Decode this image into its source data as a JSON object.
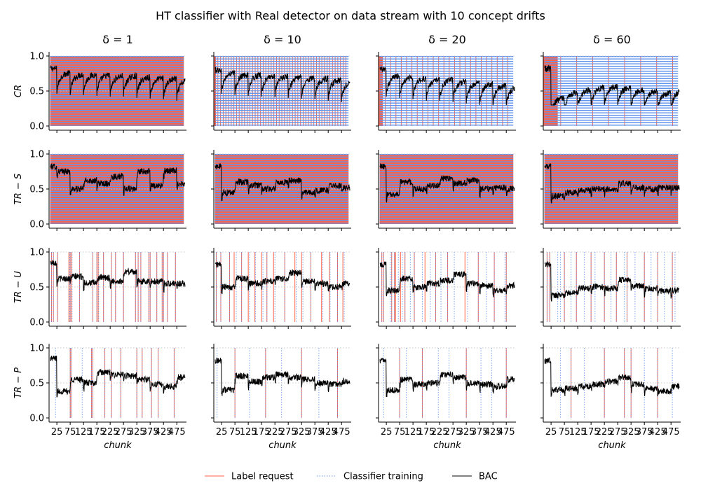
{
  "figure": {
    "title": "HT classifier with Real detector on data stream with 10 concept drifts"
  },
  "chart_data": {
    "type": "line",
    "n_chunks": 500,
    "x_range": [
      1,
      500
    ],
    "ylim": [
      0,
      1
    ],
    "yticks": [
      "0.0",
      "0.5",
      "1.0"
    ],
    "xticks": [
      25,
      75,
      125,
      175,
      225,
      275,
      325,
      375,
      425,
      475
    ],
    "xtick_labels": [
      "25",
      "75",
      "125",
      "175",
      "225",
      "275",
      "325",
      "375",
      "425",
      "475"
    ],
    "xlabel": "chunk",
    "grid_y": [
      0.5,
      1.0
    ],
    "drift_chunks": [
      25,
      75,
      125,
      175,
      225,
      275,
      325,
      375,
      425,
      475
    ],
    "columns": [
      "δ = 1",
      "δ = 10",
      "δ = 20",
      "δ = 60"
    ],
    "rows": [
      "CR",
      "TR − S",
      "TR − U",
      "TR − P"
    ],
    "colors": {
      "label_request": "#ff6347",
      "classifier_training": "#6495ed",
      "bac": "#000000",
      "grid": "#c8c8c8"
    },
    "legend": {
      "placement": "bottom-center",
      "entries": [
        {
          "key": "label_request",
          "label": "Label request",
          "style": "solid"
        },
        {
          "key": "classifier_training",
          "label": "Classifier training",
          "style": "dotted"
        },
        {
          "key": "bac",
          "label": "BAC",
          "style": "solid"
        }
      ]
    },
    "panels": [
      {
        "row": 0,
        "col": 0,
        "bac_levels": [
          0.82,
          0.76,
          0.74,
          0.74,
          0.73,
          0.72,
          0.72,
          0.7,
          0.69,
          0.68,
          0.66
        ],
        "initial_full_chunks": 0,
        "label_request_chunks": "all",
        "classifier_training_chunks": "all"
      },
      {
        "row": 0,
        "col": 1,
        "bac_levels": [
          0.8,
          0.76,
          0.74,
          0.73,
          0.72,
          0.71,
          0.7,
          0.69,
          0.68,
          0.66,
          0.64
        ],
        "initial_full_chunks": 4,
        "label_request_chunks": "every_10",
        "classifier_training_chunks": "all"
      },
      {
        "row": 0,
        "col": 2,
        "bac_levels": [
          0.8,
          0.72,
          0.7,
          0.68,
          0.66,
          0.66,
          0.64,
          0.62,
          0.6,
          0.58,
          0.56
        ],
        "initial_full_chunks": 12,
        "label_request_chunks": "every_20",
        "classifier_training_chunks": "all"
      },
      {
        "row": 0,
        "col": 3,
        "bac_levels": [
          0.82,
          0.4,
          0.48,
          0.52,
          0.55,
          0.57,
          0.55,
          0.52,
          0.5,
          0.48,
          0.5
        ],
        "initial_full_chunks": 50,
        "label_request_chunks": "every_60",
        "classifier_training_chunks": "all"
      },
      {
        "row": 1,
        "col": 0,
        "bac_levels": [
          0.82,
          0.75,
          0.5,
          0.62,
          0.58,
          0.68,
          0.5,
          0.75,
          0.55,
          0.76,
          0.58
        ],
        "label_request_chunks": "all",
        "classifier_training_chunks": "all"
      },
      {
        "row": 1,
        "col": 1,
        "bac_levels": [
          0.82,
          0.45,
          0.6,
          0.55,
          0.5,
          0.6,
          0.62,
          0.45,
          0.48,
          0.55,
          0.52
        ],
        "label_request_chunks": "all",
        "classifier_training_chunks": "all"
      },
      {
        "row": 1,
        "col": 2,
        "bac_levels": [
          0.82,
          0.42,
          0.6,
          0.5,
          0.55,
          0.65,
          0.58,
          0.62,
          0.5,
          0.52,
          0.5
        ],
        "label_request_chunks": "all",
        "classifier_training_chunks": "all"
      },
      {
        "row": 1,
        "col": 3,
        "bac_levels": [
          0.82,
          0.4,
          0.45,
          0.48,
          0.5,
          0.5,
          0.58,
          0.52,
          0.5,
          0.52,
          0.52
        ],
        "label_request_chunks": "all",
        "classifier_training_chunks": "all"
      },
      {
        "row": 2,
        "col": 0,
        "bac_levels": [
          0.85,
          0.62,
          0.65,
          0.56,
          0.63,
          0.58,
          0.72,
          0.58,
          0.58,
          0.55,
          0.55
        ],
        "label_request_chunks": [
          5,
          12,
          28,
          70,
          75,
          80,
          110,
          160,
          175,
          180,
          200,
          230,
          245,
          275,
          320,
          330,
          340,
          370,
          375,
          400,
          420,
          425,
          440,
          470
        ],
        "classifier_training_chunks": [
          5,
          12,
          28,
          72,
          75,
          82,
          110,
          160,
          175,
          182,
          200,
          230,
          245,
          275,
          320,
          330,
          340,
          370,
          375,
          400,
          420,
          425,
          440,
          470
        ]
      },
      {
        "row": 2,
        "col": 1,
        "bac_levels": [
          0.82,
          0.5,
          0.62,
          0.55,
          0.58,
          0.62,
          0.7,
          0.58,
          0.55,
          0.5,
          0.55
        ],
        "label_request_chunks": [
          5,
          22,
          55,
          72,
          100,
          125,
          150,
          175,
          195,
          220,
          262,
          300,
          325,
          360,
          400,
          430,
          460,
          480
        ],
        "classifier_training_chunks": [
          5,
          22,
          55,
          80,
          100,
          130,
          152,
          180,
          195,
          225,
          262,
          305,
          330,
          360,
          405,
          432,
          460,
          485
        ]
      },
      {
        "row": 2,
        "col": 2,
        "bac_levels": [
          0.82,
          0.45,
          0.62,
          0.5,
          0.55,
          0.6,
          0.68,
          0.55,
          0.52,
          0.45,
          0.52
        ],
        "label_request_chunks": [
          8,
          15,
          45,
          55,
          60,
          78,
          95,
          130,
          170,
          210,
          255,
          320,
          370,
          430,
          475
        ],
        "classifier_training_chunks": [
          8,
          15,
          40,
          45,
          55,
          70,
          85,
          95,
          115,
          130,
          160,
          190,
          210,
          230,
          255,
          280,
          330,
          370,
          400,
          430,
          470,
          475
        ]
      },
      {
        "row": 2,
        "col": 3,
        "bac_levels": [
          0.82,
          0.38,
          0.42,
          0.48,
          0.5,
          0.48,
          0.6,
          0.52,
          0.48,
          0.45,
          0.45
        ],
        "label_request_chunks": [
          10,
          20,
          75,
          120,
          175,
          225,
          270,
          310,
          375,
          425,
          480
        ],
        "classifier_training_chunks": [
          10,
          20,
          50,
          60,
          75,
          100,
          120,
          150,
          175,
          190,
          225,
          250,
          270,
          300,
          310,
          340,
          375,
          400,
          425,
          450,
          480,
          490
        ]
      },
      {
        "row": 3,
        "col": 0,
        "bac_levels": [
          0.85,
          0.38,
          0.55,
          0.5,
          0.65,
          0.62,
          0.6,
          0.55,
          0.48,
          0.45,
          0.58
        ],
        "label_request_chunks": [
          75,
          78,
          155,
          160,
          205,
          230,
          265,
          325,
          345,
          380,
          405,
          465
        ],
        "classifier_training_chunks": [
          20,
          75,
          78,
          120,
          155,
          160,
          205,
          230,
          265,
          325,
          345,
          380,
          405,
          465
        ]
      },
      {
        "row": 3,
        "col": 1,
        "bac_levels": [
          0.82,
          0.4,
          0.6,
          0.52,
          0.58,
          0.62,
          0.58,
          0.55,
          0.5,
          0.48,
          0.52
        ],
        "label_request_chunks": [
          75,
          190,
          325,
          460
        ],
        "classifier_training_chunks": [
          8,
          75,
          130,
          190,
          250,
          325,
          390,
          460
        ]
      },
      {
        "row": 3,
        "col": 2,
        "bac_levels": [
          0.82,
          0.4,
          0.55,
          0.48,
          0.5,
          0.62,
          0.58,
          0.5,
          0.48,
          0.45,
          0.55
        ],
        "label_request_chunks": [
          75,
          160,
          325,
          475
        ],
        "classifier_training_chunks": [
          15,
          75,
          100,
          160,
          220,
          260,
          325,
          380,
          420,
          475
        ]
      },
      {
        "row": 3,
        "col": 3,
        "bac_levels": [
          0.82,
          0.4,
          0.42,
          0.45,
          0.48,
          0.52,
          0.58,
          0.48,
          0.42,
          0.38,
          0.45
        ],
        "label_request_chunks": [
          100,
          225,
          300,
          325,
          425
        ],
        "classifier_training_chunks": [
          60,
          100,
          150,
          225,
          300,
          325,
          375,
          425,
          480
        ]
      }
    ]
  }
}
